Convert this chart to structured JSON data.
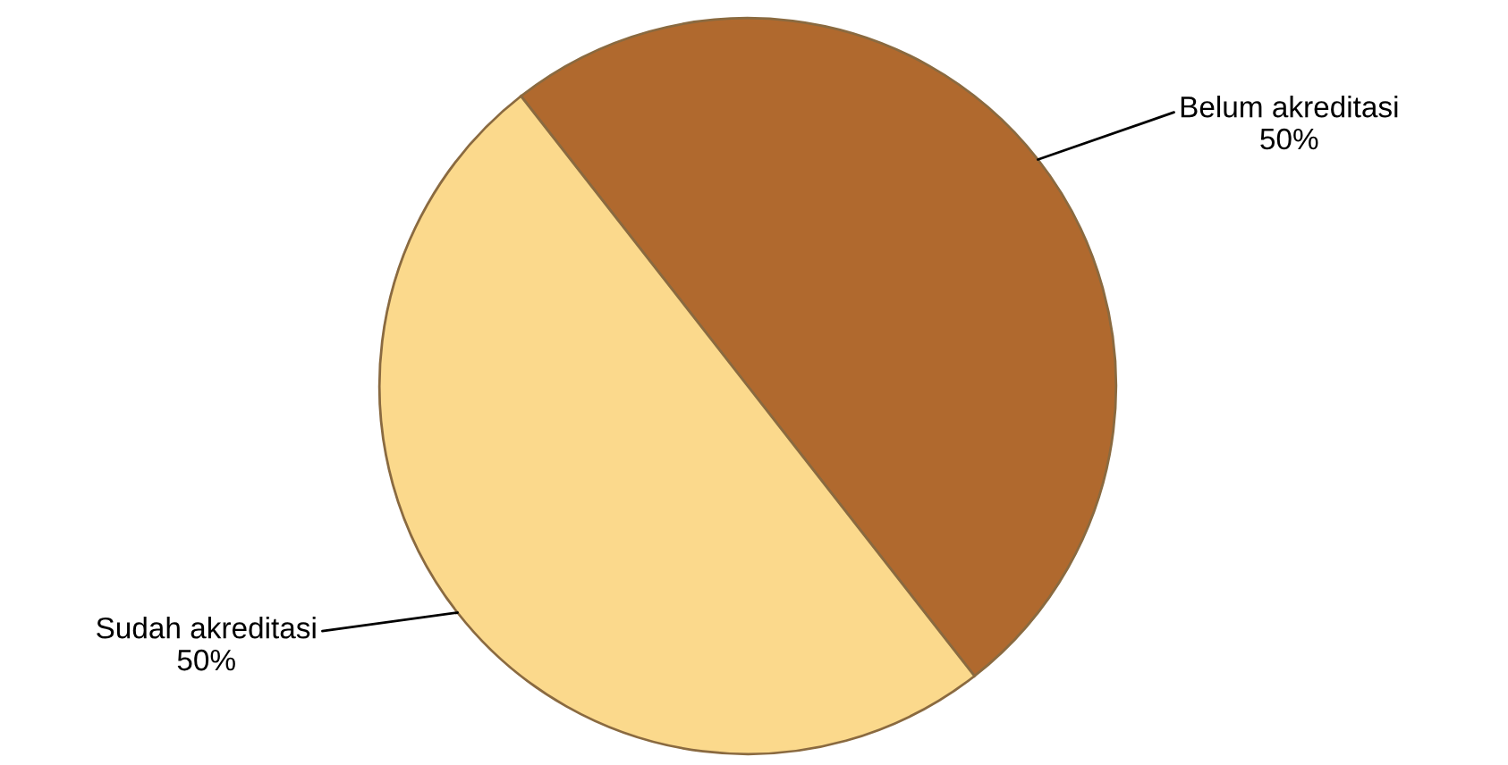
{
  "chart_data": {
    "type": "pie",
    "categories": [
      "Belum akreditasi",
      "Sudah akreditasi"
    ],
    "values": [
      50,
      50
    ],
    "colors": [
      "#b0692e",
      "#fbd98c"
    ],
    "value_labels": [
      "50%",
      "50%"
    ],
    "legend": false
  }
}
